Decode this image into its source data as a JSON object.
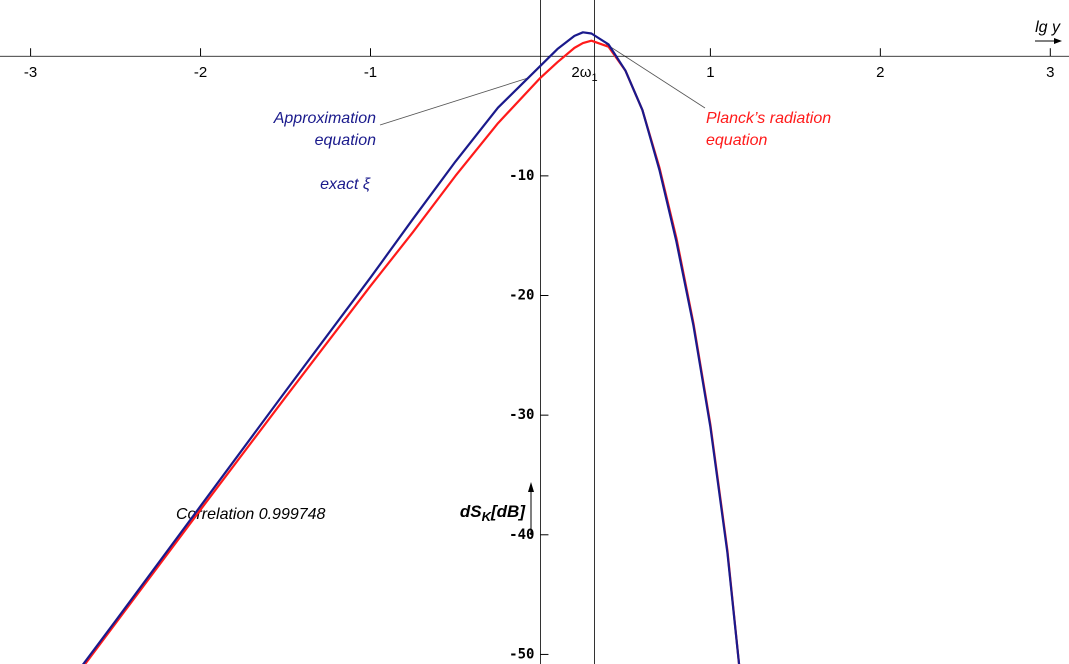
{
  "chart_data": {
    "type": "line",
    "x_label": "lg y",
    "y_label": [
      "dS",
      "K",
      "[dB]"
    ],
    "x": [
      -2.7,
      -2.5,
      -2,
      -1.5,
      -1,
      -0.75,
      -0.5,
      -0.25,
      0,
      0.1,
      0.2,
      0.25,
      0.3,
      0.4,
      0.5,
      0.6,
      0.7,
      0.8,
      0.9,
      1.0,
      1.1,
      1.17
    ],
    "series": [
      {
        "name": "Planck’s radiation equation",
        "name_lines": [
          "Planck’s radiation",
          "equation"
        ],
        "color": "#ff1a1a",
        "values": [
          -51.2,
          -47.4,
          -37.9,
          -28.5,
          -19.2,
          -14.7,
          -10.0,
          -5.6,
          -1.8,
          -0.5,
          0.7,
          1.1,
          1.3,
          0.8,
          -1.2,
          -4.5,
          -9.3,
          -15.2,
          -22.3,
          -30.8,
          -41.3,
          -51
        ]
      },
      {
        "name": "Approximation equation",
        "name_lines": [
          "Approximation",
          "equation"
        ],
        "color": "#1a1a8c",
        "values": [
          -51,
          -47.2,
          -37.6,
          -28,
          -18.5,
          -13.6,
          -8.8,
          -4.3,
          -0.8,
          0.6,
          1.7,
          2.0,
          1.9,
          1.0,
          -1.2,
          -4.5,
          -9.5,
          -15.5,
          -22.5,
          -31,
          -41.5,
          -51
        ]
      }
    ],
    "annotations": {
      "exact": "exact ξ",
      "correlation": "Correlation 0.999748",
      "vline_label": [
        "2ω",
        "1"
      ]
    },
    "vline": 0.318,
    "xlim": [
      -3.18,
      3.11
    ],
    "ylim": [
      -50.8,
      4.7
    ],
    "xticks": [
      -3,
      -2,
      -1,
      1,
      2,
      3
    ],
    "yticks": [
      -10,
      -20,
      -30,
      -40,
      -50
    ]
  }
}
